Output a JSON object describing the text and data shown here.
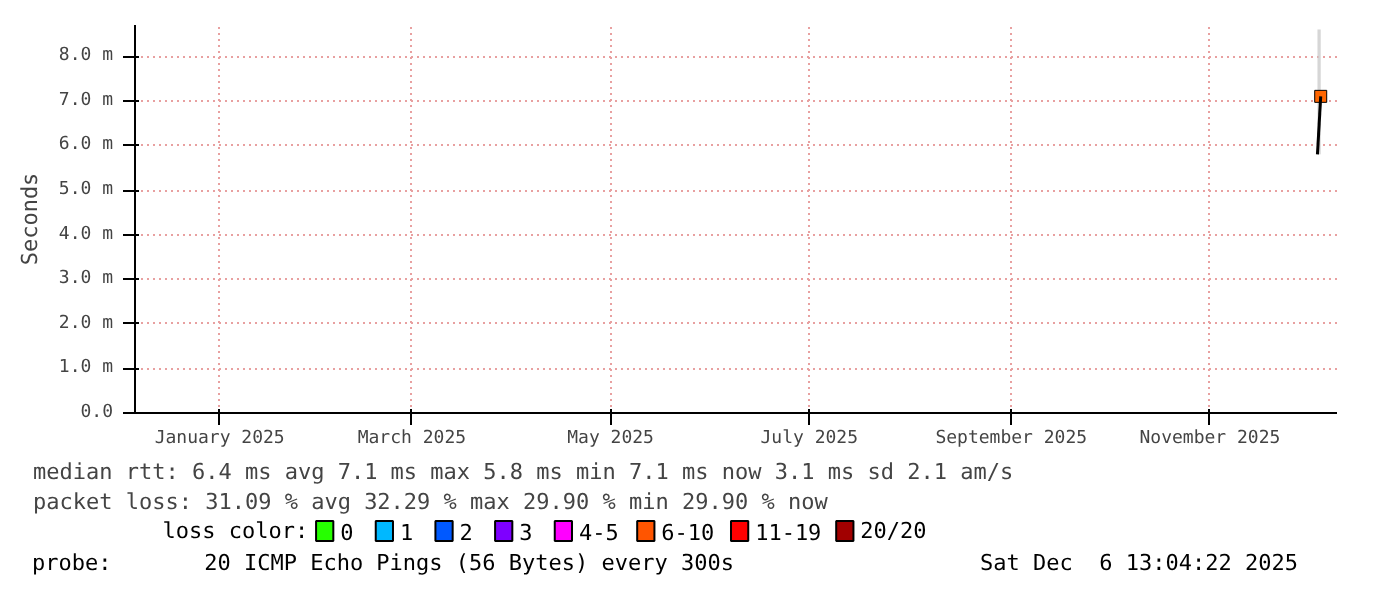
{
  "chart_data": {
    "type": "line",
    "ylabel": "Seconds",
    "xlim": [
      "2024-12-06",
      "2025-12-10"
    ],
    "xticks": [
      {
        "value": "2025-01-01",
        "label": "January 2025"
      },
      {
        "value": "2025-03-01",
        "label": "March 2025"
      },
      {
        "value": "2025-05-01",
        "label": "May 2025"
      },
      {
        "value": "2025-07-01",
        "label": "July 2025"
      },
      {
        "value": "2025-09-01",
        "label": "September 2025"
      },
      {
        "value": "2025-11-01",
        "label": "November 2025"
      }
    ],
    "ylim": [
      0,
      8.7
    ],
    "yticks": [
      {
        "value": 0,
        "label": "0.0"
      },
      {
        "value": 1,
        "label": "1.0 m"
      },
      {
        "value": 2,
        "label": "2.0 m"
      },
      {
        "value": 3,
        "label": "3.0 m"
      },
      {
        "value": 4,
        "label": "4.0 m"
      },
      {
        "value": 5,
        "label": "5.0 m"
      },
      {
        "value": 6,
        "label": "6.0 m"
      },
      {
        "value": 7,
        "label": "7.0 m"
      },
      {
        "value": 8,
        "label": "8.0 m"
      }
    ],
    "grid": true,
    "legend": "bottom",
    "legend_title": "loss color:",
    "series": [
      {
        "color": "#000000",
        "x": [
          "2025-12-04",
          "2025-12-05"
        ],
        "values": [
          5.8,
          7.1
        ],
        "lower": [
          5.8,
          5.8
        ],
        "upper": [
          8.6,
          8.6
        ]
      },
      {
        "type": "scatter",
        "color": "#ff6600",
        "x": [
          "2025-12-05"
        ],
        "values": [
          7.1
        ]
      },
      {
        "type": "scatter",
        "name": "0",
        "color": "#26ff00"
      },
      {
        "type": "scatter",
        "name": "1",
        "color": "#00b8ff"
      },
      {
        "type": "scatter",
        "name": "2",
        "color": "#0059ff"
      },
      {
        "type": "scatter",
        "name": "3",
        "color": "#7e00ff"
      },
      {
        "type": "scatter",
        "name": "4-5",
        "color": "#ff00ff"
      },
      {
        "type": "scatter",
        "name": "6-10",
        "color": "#ff5500"
      },
      {
        "type": "scatter",
        "name": "11-19",
        "color": "#ff0000"
      },
      {
        "type": "scatter",
        "name": "20/20",
        "color": "#a10000"
      }
    ],
    "annotations": [
      "median rtt:  6.4 ms avg  7.1 ms max  5.8 ms min  7.1 ms now  3.1 ms sd  2.1   am/s",
      "packet loss: 31.09 % avg  32.29 % max  29.90 % min  29.90 % now",
      "probe:       20 ICMP Echo Pings (56 Bytes) every 300s",
      "Sat Dec  6 13:04:22 2025"
    ]
  }
}
